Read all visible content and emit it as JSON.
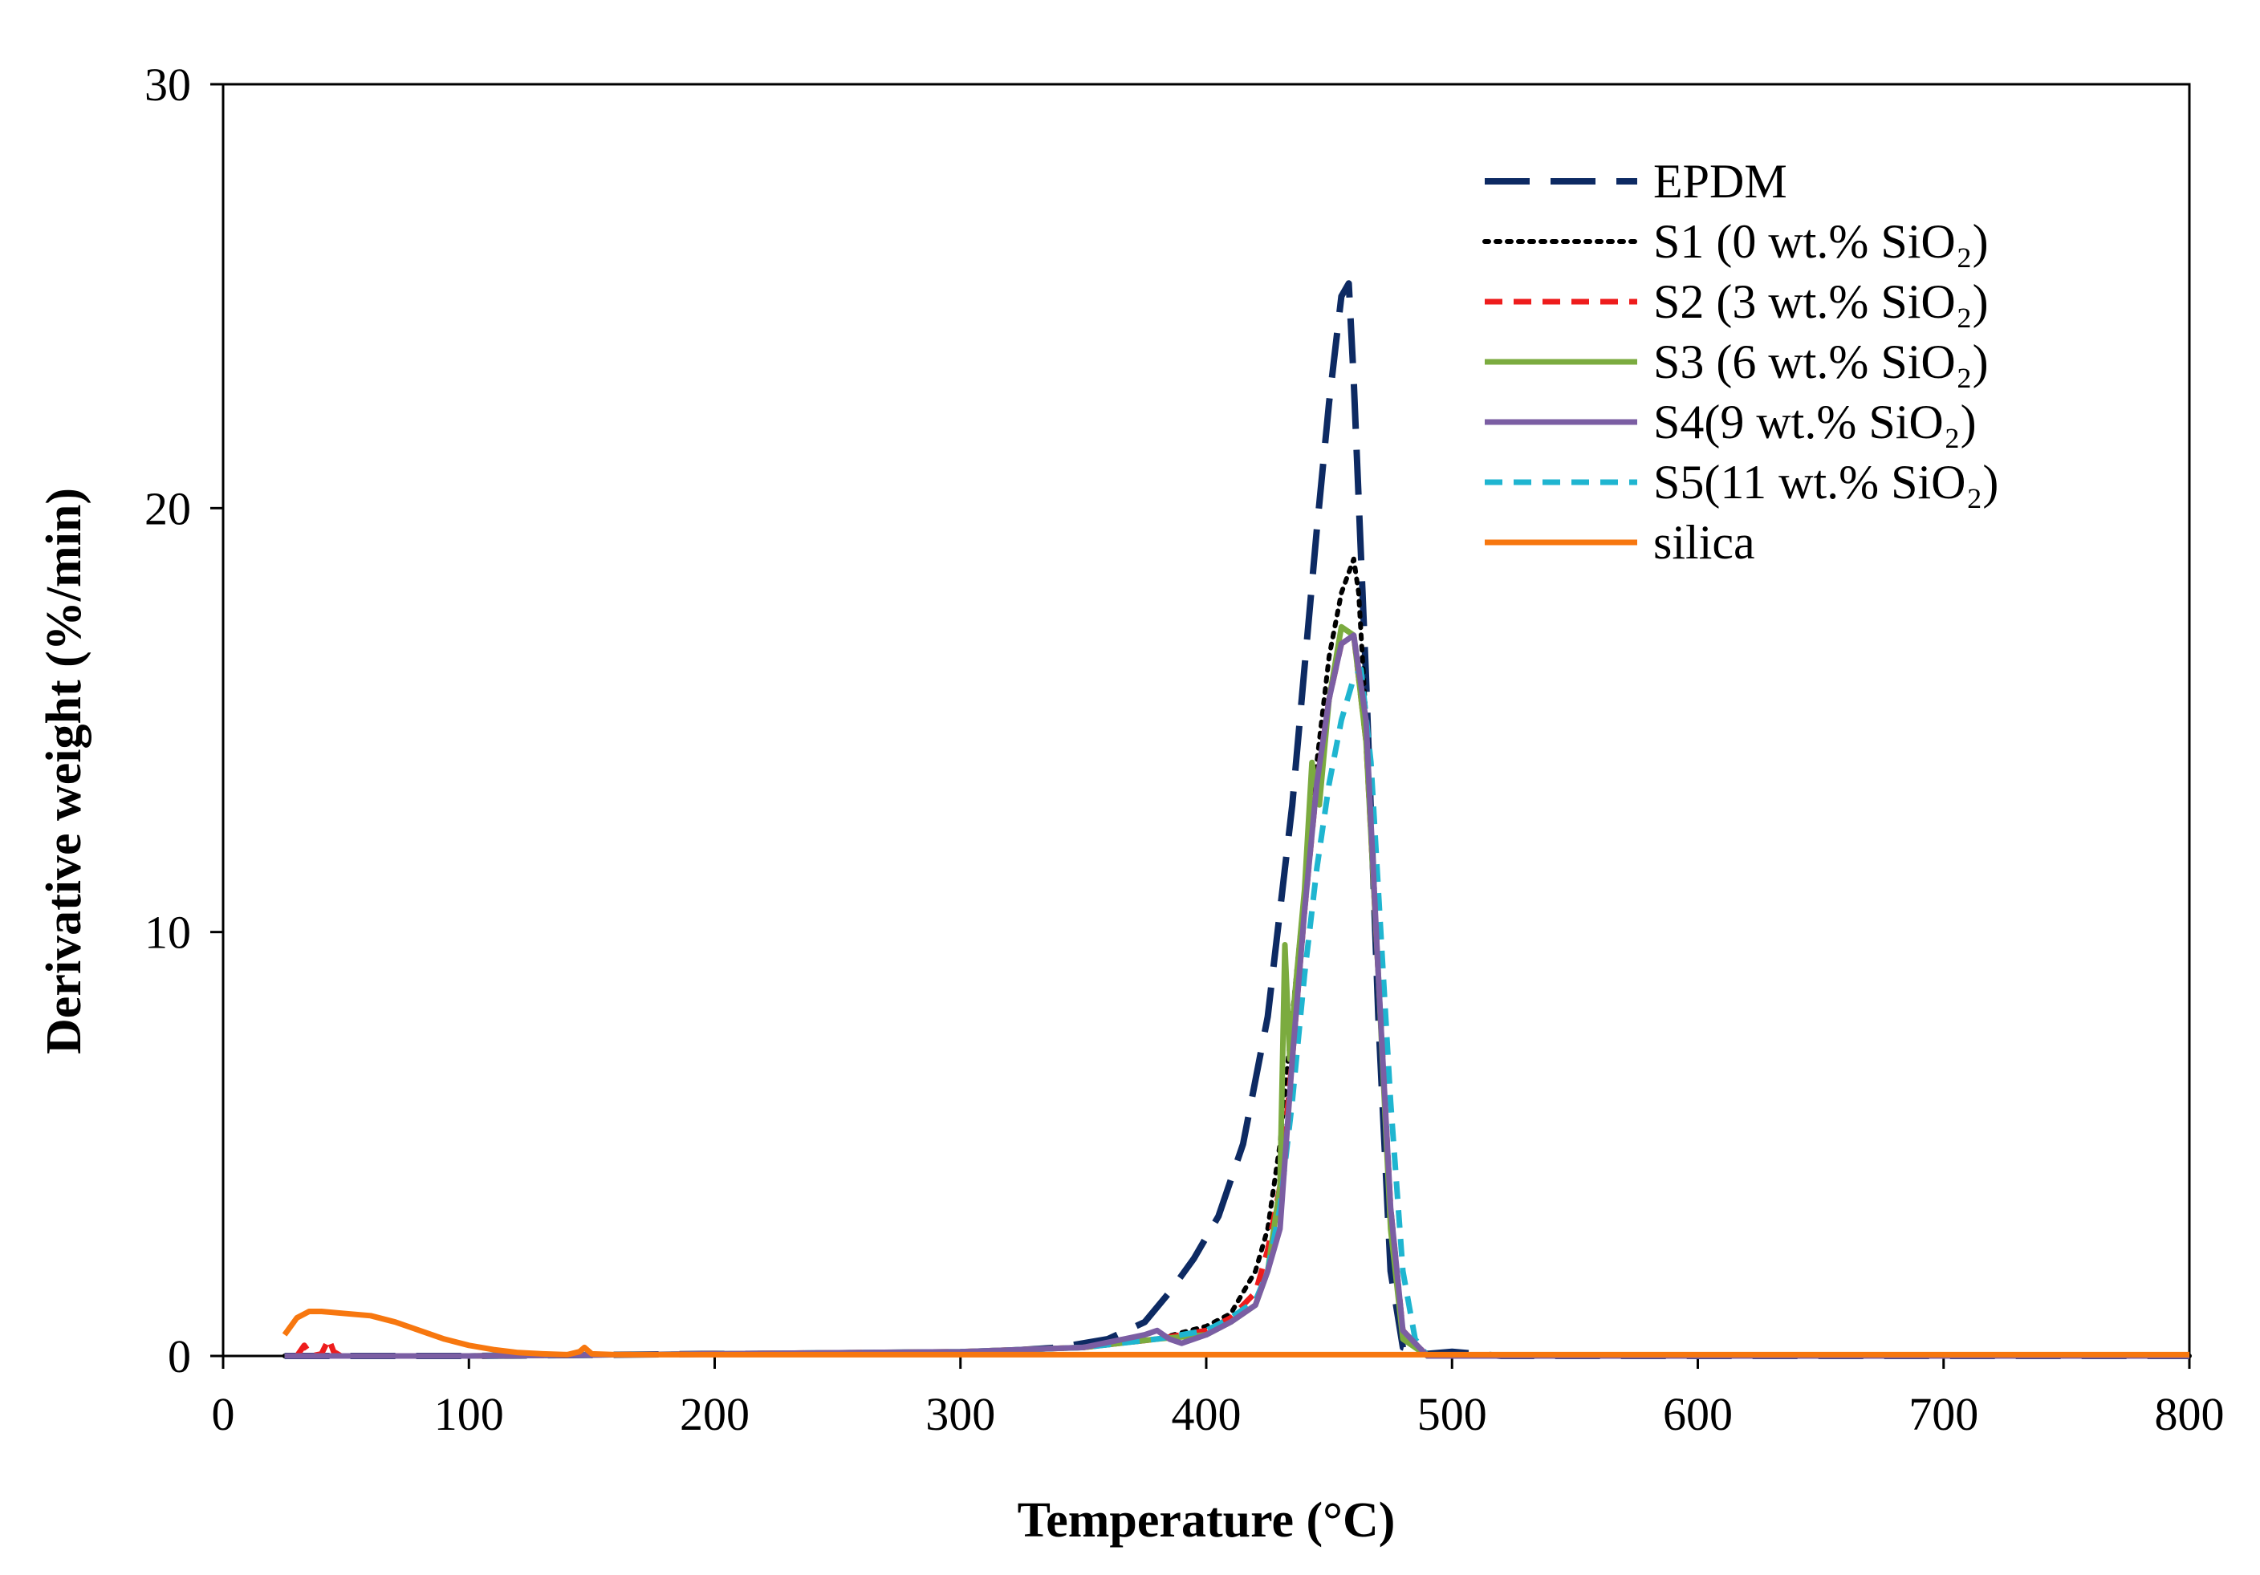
{
  "chart_data": {
    "type": "line",
    "title": "",
    "xlabel": "Temperature (°C)",
    "ylabel": "Derivative weight (%/min)",
    "xlim": [
      0,
      800
    ],
    "ylim": [
      0,
      30
    ],
    "xticks": [
      0,
      100,
      200,
      300,
      400,
      500,
      600,
      700,
      800
    ],
    "yticks": [
      0,
      10,
      20,
      30
    ],
    "grid": false,
    "legend_position": "top-right",
    "series": [
      {
        "name": "EPDM",
        "legend_label": "EPDM",
        "color": "#0d2a63",
        "dash": "long-dash",
        "x": [
          25,
          100,
          200,
          300,
          340,
          360,
          375,
          385,
          395,
          405,
          415,
          425,
          435,
          445,
          450,
          455,
          458,
          460,
          465,
          470,
          475,
          480,
          490,
          500,
          520,
          600,
          700,
          800
        ],
        "y": [
          0,
          0,
          0.05,
          0.05,
          0.2,
          0.4,
          0.8,
          1.5,
          2.3,
          3.3,
          5.0,
          8.0,
          13.0,
          19.5,
          22.5,
          25.0,
          25.3,
          23.0,
          16.0,
          8.0,
          2.0,
          0.2,
          0.05,
          0.1,
          0,
          0,
          0,
          0
        ]
      },
      {
        "name": "S1",
        "legend_label": "S1 (0 wt.% SiO₂)",
        "color": "#000000",
        "dash": "dotted",
        "x": [
          25,
          100,
          200,
          300,
          350,
          380,
          400,
          410,
          420,
          425,
          430,
          435,
          440,
          445,
          450,
          455,
          460,
          462,
          465,
          470,
          475,
          480,
          490,
          600,
          800
        ],
        "y": [
          0,
          0,
          0.05,
          0.1,
          0.2,
          0.4,
          0.7,
          1.0,
          2.0,
          3.0,
          5.0,
          8.0,
          11.0,
          14.0,
          16.5,
          18.0,
          18.8,
          18.0,
          15.0,
          9.0,
          3.5,
          0.6,
          0,
          0,
          0
        ]
      },
      {
        "name": "S2",
        "legend_label": "S2 (3 wt.% SiO₂)",
        "color": "#ee1c1c",
        "dash": "dashed",
        "x": [
          30,
          33,
          36,
          40,
          43,
          45,
          48,
          60,
          100,
          200,
          300,
          350,
          380,
          400,
          410,
          420,
          425,
          430,
          435,
          440,
          445,
          450,
          455,
          460,
          465,
          470,
          475,
          480,
          490,
          600,
          800
        ],
        "y": [
          0,
          0.25,
          0,
          0.05,
          0.4,
          0.1,
          0,
          0,
          0,
          0.05,
          0.1,
          0.2,
          0.4,
          0.6,
          0.9,
          1.5,
          2.5,
          4.0,
          7.0,
          10.5,
          13.5,
          15.5,
          16.8,
          17.0,
          14.5,
          9.0,
          3.5,
          0.6,
          0,
          0,
          0
        ]
      },
      {
        "name": "S3",
        "legend_label": "S3 (6 wt.% SiO₂)",
        "color": "#7bab3f",
        "dash": "solid",
        "x": [
          25,
          100,
          200,
          300,
          350,
          380,
          400,
          410,
          420,
          425,
          430,
          432,
          434,
          436,
          440,
          443,
          446,
          450,
          455,
          460,
          465,
          470,
          475,
          480,
          490,
          600,
          800
        ],
        "y": [
          0,
          0,
          0.05,
          0.1,
          0.2,
          0.4,
          0.5,
          0.8,
          1.2,
          2.0,
          4.0,
          9.7,
          7.0,
          8.5,
          11.0,
          14.0,
          13.0,
          15.5,
          17.2,
          17.0,
          14.5,
          9.0,
          3.0,
          0.4,
          0,
          0,
          0
        ]
      },
      {
        "name": "S4",
        "legend_label": "S4(9 wt.% SiO₂)",
        "color": "#7b5ea3",
        "dash": "solid",
        "x": [
          25,
          100,
          200,
          300,
          350,
          375,
          380,
          385,
          390,
          400,
          410,
          420,
          425,
          430,
          435,
          440,
          445,
          450,
          455,
          460,
          465,
          470,
          475,
          480,
          490,
          600,
          800
        ],
        "y": [
          0,
          0,
          0.05,
          0.1,
          0.2,
          0.5,
          0.6,
          0.4,
          0.3,
          0.5,
          0.8,
          1.2,
          2.0,
          3.0,
          7.0,
          10.5,
          13.5,
          15.5,
          16.8,
          17.0,
          15.0,
          9.0,
          3.5,
          0.6,
          0,
          0,
          0
        ]
      },
      {
        "name": "S5",
        "legend_label": "S5(11 wt.% SiO₂)",
        "color": "#1fb5d0",
        "dash": "dashed",
        "x": [
          25,
          100,
          200,
          300,
          350,
          380,
          400,
          410,
          420,
          425,
          430,
          435,
          440,
          445,
          450,
          455,
          460,
          463,
          467,
          470,
          475,
          480,
          485,
          490,
          600,
          800
        ],
        "y": [
          0,
          0,
          0.05,
          0.1,
          0.2,
          0.4,
          0.6,
          0.9,
          1.3,
          2.0,
          3.5,
          6.0,
          9.0,
          11.5,
          13.5,
          15.0,
          16.0,
          16.2,
          14.0,
          11.0,
          6.0,
          2.0,
          0.4,
          0,
          0,
          0
        ]
      },
      {
        "name": "silica",
        "legend_label": "silica",
        "color": "#f7770f",
        "dash": "solid",
        "x": [
          25,
          30,
          35,
          40,
          50,
          60,
          70,
          80,
          90,
          100,
          110,
          120,
          130,
          140,
          145,
          147,
          150,
          160,
          200,
          300,
          400,
          500,
          600,
          700,
          800
        ],
        "y": [
          0.5,
          0.9,
          1.05,
          1.05,
          1.0,
          0.95,
          0.8,
          0.6,
          0.4,
          0.25,
          0.15,
          0.08,
          0.05,
          0.03,
          0.1,
          0.2,
          0.05,
          0.03,
          0.03,
          0.03,
          0.03,
          0.03,
          0.03,
          0.03,
          0.03
        ]
      }
    ]
  }
}
